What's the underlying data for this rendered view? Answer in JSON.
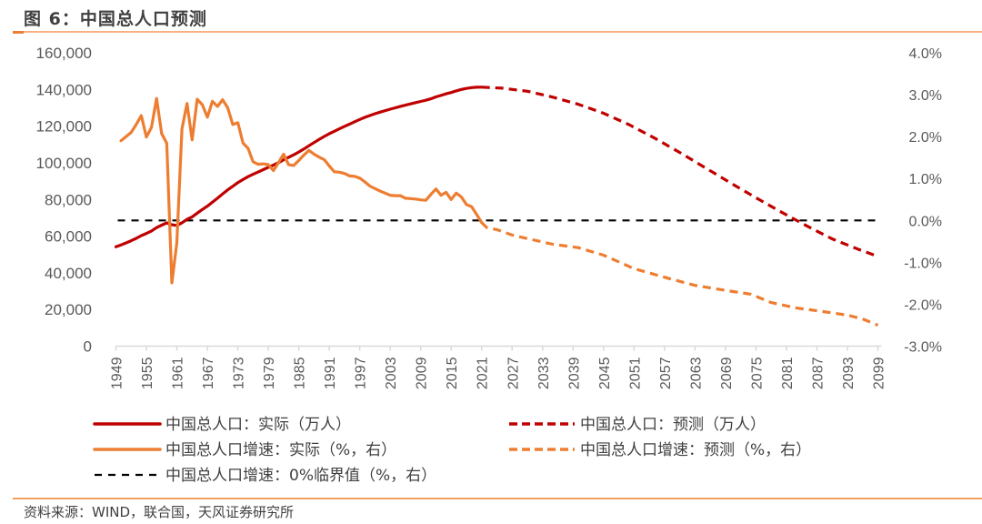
{
  "header": {
    "title": "图 6：中国总人口预测"
  },
  "footer": {
    "source": "资料来源：WIND，联合国，天风证券研究所"
  },
  "colors": {
    "population": "#c00000",
    "growth": "#ed7d31",
    "zero_line": "#000000",
    "axis": "#d9d9d9",
    "text": "#595959",
    "rule": "#f7b183"
  },
  "chart_data": {
    "type": "line",
    "title": "中国总人口预测",
    "xlabel": "",
    "ylabel_left": "万人",
    "ylabel_right": "%",
    "x_range": [
      1949,
      2100
    ],
    "x_ticks": [
      "1949",
      "1955",
      "1961",
      "1967",
      "1973",
      "1979",
      "1985",
      "1991",
      "1997",
      "2003",
      "2009",
      "2015",
      "2021",
      "2027",
      "2033",
      "2039",
      "2045",
      "2051",
      "2057",
      "2063",
      "2069",
      "2075",
      "2081",
      "2087",
      "2093",
      "2099"
    ],
    "ylim_left": [
      0,
      160000
    ],
    "y_ticks_left": [
      "0",
      "20,000",
      "40,000",
      "60,000",
      "80,000",
      "100,000",
      "120,000",
      "140,000",
      "160,000"
    ],
    "ylim_right": [
      -3.0,
      4.0
    ],
    "y_ticks_right": [
      "-3.0%",
      "-2.0%",
      "-1.0%",
      "0.0%",
      "1.0%",
      "2.0%",
      "3.0%",
      "4.0%"
    ],
    "grid": false,
    "legend_position": "bottom",
    "legend": [
      {
        "label": "中国总人口：实际（万人）",
        "series": "population_actual"
      },
      {
        "label": "中国总人口：预测（万人）",
        "series": "population_forecast"
      },
      {
        "label": "中国总人口增速：实际（%，右）",
        "series": "growth_actual"
      },
      {
        "label": "中国总人口增速：预测（%，右）",
        "series": "growth_forecast"
      },
      {
        "label": "中国总人口增速：0%临界值（%，右）",
        "series": "zero_threshold"
      }
    ],
    "series": [
      {
        "name": "population_actual",
        "label": "中国总人口：实际（万人）",
        "axis": "left",
        "style": "solid",
        "color": "#c00000",
        "x": [
          1949,
          1950,
          1951,
          1952,
          1953,
          1954,
          1955,
          1956,
          1957,
          1958,
          1959,
          1960,
          1961,
          1962,
          1963,
          1964,
          1965,
          1966,
          1967,
          1968,
          1969,
          1970,
          1971,
          1972,
          1973,
          1974,
          1975,
          1976,
          1977,
          1978,
          1979,
          1980,
          1981,
          1982,
          1983,
          1984,
          1985,
          1986,
          1987,
          1988,
          1989,
          1990,
          1991,
          1992,
          1993,
          1994,
          1995,
          1996,
          1997,
          1998,
          1999,
          2000,
          2001,
          2002,
          2003,
          2004,
          2005,
          2006,
          2007,
          2008,
          2009,
          2010,
          2011,
          2012,
          2013,
          2014,
          2015,
          2016,
          2017,
          2018,
          2019,
          2020,
          2021
        ],
        "values": [
          54167,
          55196,
          56300,
          57482,
          58796,
          60266,
          61465,
          62828,
          64653,
          65994,
          67207,
          66207,
          65859,
          67296,
          69172,
          70499,
          72538,
          74542,
          76368,
          78534,
          80671,
          82992,
          85229,
          87177,
          89211,
          90859,
          92420,
          93717,
          94974,
          96259,
          97542,
          98705,
          100072,
          101654,
          103008,
          104357,
          105851,
          107507,
          109300,
          111026,
          112704,
          114333,
          115823,
          117171,
          118517,
          119850,
          121121,
          122389,
          123626,
          124761,
          125786,
          126743,
          127627,
          128453,
          129227,
          129988,
          130756,
          131448,
          132129,
          132802,
          133450,
          134091,
          134916,
          135922,
          136726,
          137646,
          138326,
          139232,
          140011,
          140541,
          141008,
          141212,
          141260
        ]
      },
      {
        "name": "population_forecast",
        "label": "中国总人口：预测（万人）",
        "axis": "left",
        "style": "dashed",
        "color": "#c00000",
        "x": [
          2021,
          2025,
          2030,
          2035,
          2040,
          2045,
          2050,
          2055,
          2060,
          2065,
          2070,
          2075,
          2080,
          2085,
          2090,
          2095,
          2099
        ],
        "values": [
          141260,
          140700,
          139000,
          135800,
          131900,
          127000,
          120800,
          113500,
          105600,
          97300,
          89000,
          80900,
          73100,
          65600,
          58500,
          53000,
          48900
        ]
      },
      {
        "name": "growth_actual",
        "label": "中国总人口增速：实际（%，右）",
        "axis": "right",
        "style": "solid",
        "color": "#ed7d31",
        "x": [
          1950,
          1951,
          1952,
          1953,
          1954,
          1955,
          1956,
          1957,
          1958,
          1959,
          1960,
          1961,
          1962,
          1963,
          1964,
          1965,
          1966,
          1967,
          1968,
          1969,
          1970,
          1971,
          1972,
          1973,
          1974,
          1975,
          1976,
          1977,
          1978,
          1979,
          1980,
          1981,
          1982,
          1983,
          1984,
          1985,
          1986,
          1987,
          1988,
          1989,
          1990,
          1991,
          1992,
          1993,
          1994,
          1995,
          1996,
          1997,
          1998,
          1999,
          2000,
          2001,
          2002,
          2003,
          2004,
          2005,
          2006,
          2007,
          2008,
          2009,
          2010,
          2011,
          2012,
          2013,
          2014,
          2015,
          2016,
          2017,
          2018,
          2019,
          2020,
          2021
        ],
        "values": [
          1.9,
          2.0,
          2.1,
          2.29,
          2.5,
          1.99,
          2.22,
          2.91,
          2.07,
          1.84,
          -1.49,
          -0.53,
          2.18,
          2.79,
          1.92,
          2.89,
          2.76,
          2.46,
          2.84,
          2.72,
          2.88,
          2.69,
          2.29,
          2.33,
          1.85,
          1.72,
          1.4,
          1.34,
          1.35,
          1.33,
          1.19,
          1.38,
          1.58,
          1.33,
          1.31,
          1.43,
          1.56,
          1.67,
          1.58,
          1.51,
          1.45,
          1.3,
          1.16,
          1.15,
          1.12,
          1.06,
          1.05,
          1.01,
          0.92,
          0.82,
          0.76,
          0.7,
          0.65,
          0.6,
          0.59,
          0.59,
          0.53,
          0.52,
          0.51,
          0.49,
          0.48,
          0.62,
          0.75,
          0.6,
          0.67,
          0.5,
          0.65,
          0.56,
          0.38,
          0.33,
          0.14,
          -0.05
        ]
      },
      {
        "name": "growth_forecast",
        "label": "中国总人口增速：预测（%，右）",
        "axis": "right",
        "style": "dashed",
        "color": "#ed7d31",
        "x": [
          2021,
          2022,
          2024,
          2027,
          2031,
          2035,
          2040,
          2045,
          2051,
          2058,
          2063,
          2069,
          2074,
          2078,
          2083,
          2088,
          2093,
          2096,
          2099
        ],
        "values": [
          -0.05,
          -0.17,
          -0.22,
          -0.35,
          -0.46,
          -0.57,
          -0.65,
          -0.83,
          -1.15,
          -1.39,
          -1.55,
          -1.67,
          -1.76,
          -1.96,
          -2.09,
          -2.17,
          -2.26,
          -2.35,
          -2.5
        ]
      },
      {
        "name": "zero_threshold",
        "label": "中国总人口增速：0%临界值（%，右）",
        "axis": "right",
        "style": "dashed",
        "color": "#000000",
        "x": [
          1949,
          2099
        ],
        "values": [
          0,
          0
        ]
      }
    ]
  }
}
